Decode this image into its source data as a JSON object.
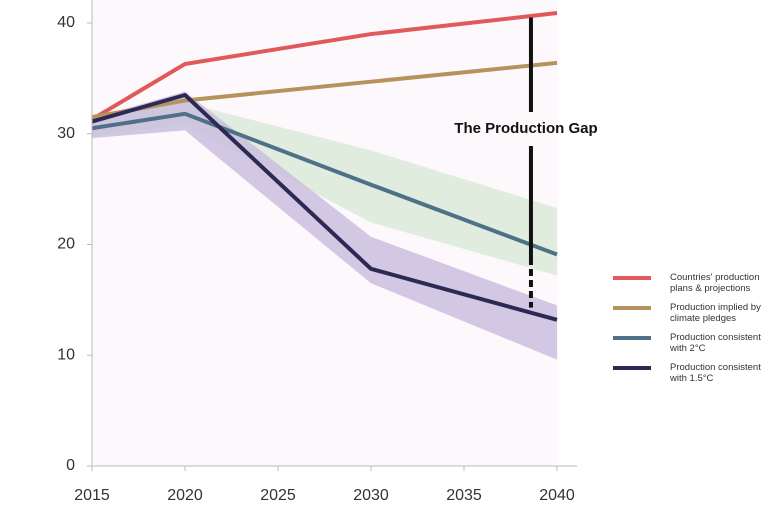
{
  "chart_data": {
    "type": "line",
    "x": [
      2015,
      2020,
      2030,
      2040
    ],
    "xlim": [
      2015,
      2040
    ],
    "xticks": [
      2015,
      2020,
      2025,
      2030,
      2035,
      2040
    ],
    "ylim": [
      0,
      40
    ],
    "yticks": [
      0,
      10,
      20,
      30,
      40
    ],
    "grid": false,
    "legend": "right",
    "series": [
      {
        "name": "Countries' production plans & projections",
        "color": "#e05a5c",
        "values": [
          31.3,
          36.3,
          39.0,
          40.9
        ]
      },
      {
        "name": "Production implied by climate pledges",
        "color": "#b8925c",
        "values": [
          31.5,
          33.0,
          34.7,
          36.4
        ]
      },
      {
        "name": "Production consistent with 2°C",
        "color": "#4f7188",
        "values": [
          30.5,
          31.8,
          25.4,
          19.1
        ],
        "band_low": [
          29.8,
          30.8,
          22.0,
          17.2
        ],
        "band_high": [
          31.3,
          32.8,
          28.5,
          23.3
        ],
        "band_color": "#d9ead8"
      },
      {
        "name": "Production consistent with 1.5°C",
        "color": "#2c2a55",
        "values": [
          31.1,
          33.5,
          17.8,
          13.2
        ],
        "band_low": [
          29.6,
          30.3,
          16.5,
          9.6
        ],
        "band_high": [
          31.4,
          33.8,
          20.7,
          14.5
        ],
        "band_color": "#cbbfdf"
      }
    ],
    "annotation": {
      "text": "The Production Gap",
      "x": 2038.6,
      "y": [
        40.5,
        14.3
      ]
    }
  }
}
